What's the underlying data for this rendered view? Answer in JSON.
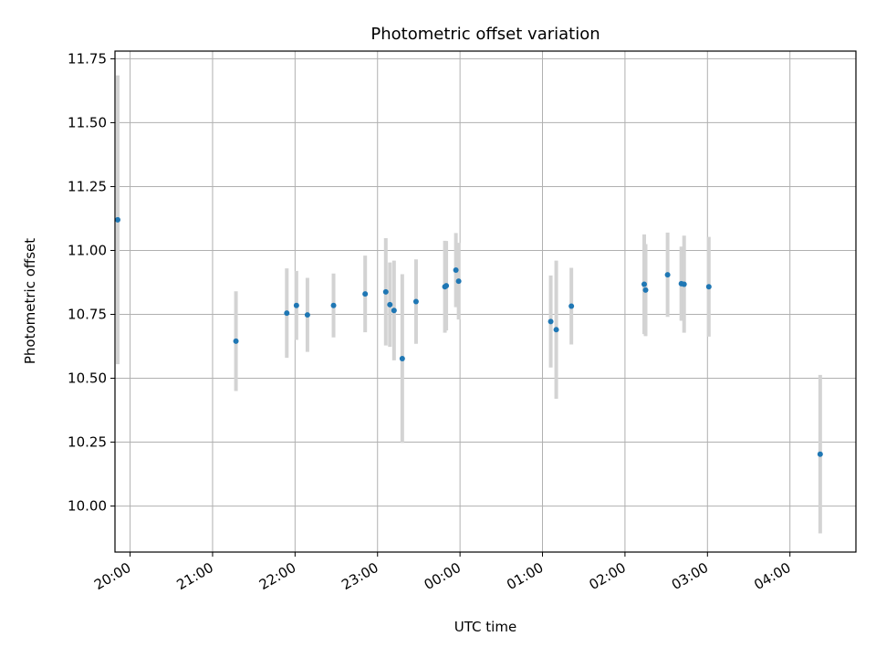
{
  "chart_data": {
    "type": "scatter",
    "title": "Photometric offset variation",
    "xlabel": "UTC time",
    "ylabel": "Photometric offset",
    "xlim": [
      "19:49",
      "04:48"
    ],
    "ylim": [
      9.82,
      11.78
    ],
    "x_ticks": [
      "20:00",
      "21:00",
      "22:00",
      "23:00",
      "00:00",
      "01:00",
      "02:00",
      "03:00",
      "04:00"
    ],
    "y_ticks": [
      "10.00",
      "10.25",
      "10.50",
      "10.75",
      "11.00",
      "11.25",
      "11.50",
      "11.75"
    ],
    "grid": true,
    "colors": {
      "point": "#1f77b4",
      "errorbar": "#d3d3d3",
      "grid": "#b0b0b0"
    },
    "series": [
      {
        "points": [
          {
            "t": "19:51",
            "y": 11.12,
            "err": 0.565
          },
          {
            "t": "21:17",
            "y": 10.645,
            "err": 0.195
          },
          {
            "t": "21:54",
            "y": 10.755,
            "err": 0.175
          },
          {
            "t": "22:01",
            "y": 10.785,
            "err": 0.135
          },
          {
            "t": "22:09",
            "y": 10.748,
            "err": 0.145
          },
          {
            "t": "22:28",
            "y": 10.785,
            "err": 0.125
          },
          {
            "t": "22:51",
            "y": 10.83,
            "err": 0.15
          },
          {
            "t": "23:06",
            "y": 10.838,
            "err": 0.21
          },
          {
            "t": "23:09",
            "y": 10.788,
            "err": 0.165
          },
          {
            "t": "23:12",
            "y": 10.765,
            "err": 0.195
          },
          {
            "t": "23:18",
            "y": 10.577,
            "err": 0.33
          },
          {
            "t": "23:28",
            "y": 10.8,
            "err": 0.165
          },
          {
            "t": "23:49",
            "y": 10.858,
            "err": 0.18
          },
          {
            "t": "23:50",
            "y": 10.862,
            "err": 0.175
          },
          {
            "t": "23:57",
            "y": 10.923,
            "err": 0.145
          },
          {
            "t": "23:59",
            "y": 10.88,
            "err": 0.15
          },
          {
            "t": "01:06",
            "y": 10.722,
            "err": 0.18
          },
          {
            "t": "01:10",
            "y": 10.69,
            "err": 0.27
          },
          {
            "t": "01:21",
            "y": 10.782,
            "err": 0.15
          },
          {
            "t": "02:14",
            "y": 10.868,
            "err": 0.195
          },
          {
            "t": "02:15",
            "y": 10.845,
            "err": 0.18
          },
          {
            "t": "02:31",
            "y": 10.905,
            "err": 0.165
          },
          {
            "t": "02:41",
            "y": 10.87,
            "err": 0.145
          },
          {
            "t": "02:43",
            "y": 10.868,
            "err": 0.19
          },
          {
            "t": "03:01",
            "y": 10.858,
            "err": 0.195
          },
          {
            "t": "04:22",
            "y": 10.203,
            "err": 0.31
          }
        ]
      }
    ]
  }
}
